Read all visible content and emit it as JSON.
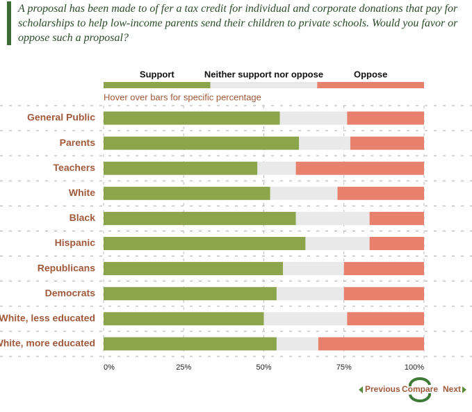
{
  "chart_data": {
    "type": "bar",
    "orientation": "horizontal",
    "stacked": true,
    "title": "A proposal has been made to of fer a tax credit for individual and corporate donations that pay for scholarships to help low-income parents send their children to private schools. Would you favor or oppose such a proposal?",
    "note": "Hover over bars for specific percentage",
    "categories": [
      "General Public",
      "Parents",
      "Teachers",
      "White",
      "Black",
      "Hispanic",
      "Republicans",
      "Democrats",
      "White, less educated",
      "White, more educated"
    ],
    "series": [
      {
        "name": "Support",
        "color": "#8ca54b",
        "values": [
          55,
          61,
          48,
          52,
          60,
          63,
          56,
          54,
          50,
          54
        ]
      },
      {
        "name": "Neither support nor oppose",
        "color": "#e9e9e9",
        "values": [
          21,
          16,
          12,
          21,
          23,
          20,
          19,
          21,
          26,
          13
        ]
      },
      {
        "name": "Oppose",
        "color": "#e8806e",
        "values": [
          24,
          23,
          40,
          27,
          17,
          17,
          25,
          25,
          24,
          33
        ]
      }
    ],
    "xlim": [
      0,
      100
    ],
    "xticks": [
      {
        "value": 0,
        "label": "0%"
      },
      {
        "value": 25,
        "label": "25%"
      },
      {
        "value": 50,
        "label": "50%"
      },
      {
        "value": 75,
        "label": "75%"
      },
      {
        "value": 100,
        "label": "100%"
      }
    ],
    "grid": true
  },
  "navigation": {
    "previous": "Previous",
    "compare": "Compare",
    "next": "Next"
  }
}
